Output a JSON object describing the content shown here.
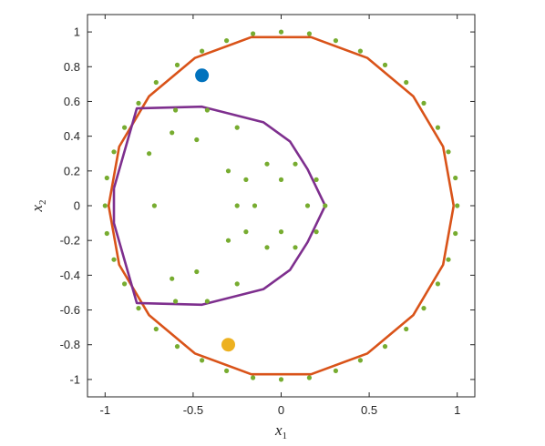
{
  "chart_data": {
    "type": "scatter",
    "title": "",
    "xlabel": "x",
    "xlabel_sub": "1",
    "ylabel": "x",
    "ylabel_sub": "2",
    "xlim": [
      -1.1,
      1.1
    ],
    "ylim": [
      -1.1,
      1.1
    ],
    "xticks": [
      -1,
      -0.5,
      0,
      0.5,
      1
    ],
    "xtick_labels": [
      "-1",
      "-0.5",
      "0",
      "0.5",
      "1"
    ],
    "yticks": [
      1,
      0.8,
      0.6,
      0.4,
      0.2,
      0,
      -0.2,
      -0.4,
      -0.6,
      -0.8,
      -1
    ],
    "ytick_labels": [
      "1",
      "0.8",
      "0.6",
      "0.4",
      "0.2",
      "0",
      "-0.2",
      "-0.4",
      "-0.6",
      "-0.8",
      "-1"
    ],
    "grid": false,
    "colors": {
      "dots": "#77AC30",
      "circle": "#D95319",
      "hull": "#7E2F8E",
      "point_blue": "#0072BD",
      "point_yellow": "#EDB120",
      "axes": "#262626"
    },
    "series": [
      {
        "type": "line",
        "color": "#D95319",
        "x": [
          0.98,
          0.92,
          0.75,
          0.49,
          0.17,
          -0.17,
          -0.49,
          -0.75,
          -0.92,
          -0.98,
          -0.92,
          -0.75,
          -0.49,
          -0.17,
          0.17,
          0.49,
          0.75,
          0.92,
          0.98
        ],
        "y": [
          0,
          0.34,
          0.63,
          0.85,
          0.97,
          0.97,
          0.85,
          0.63,
          0.34,
          0,
          -0.34,
          -0.63,
          -0.85,
          -0.97,
          -0.97,
          -0.85,
          -0.63,
          -0.34,
          0
        ]
      },
      {
        "type": "line",
        "color": "#7E2F8E",
        "x": [
          -0.95,
          -0.82,
          -0.45,
          -0.1,
          0.05,
          0.15,
          0.25,
          0.15,
          0.05,
          -0.1,
          -0.45,
          -0.82,
          -0.95,
          -0.95
        ],
        "y": [
          0.1,
          0.56,
          0.57,
          0.48,
          0.37,
          0.21,
          0,
          -0.21,
          -0.37,
          -0.48,
          -0.57,
          -0.56,
          -0.1,
          0.1
        ]
      },
      {
        "type": "scatter",
        "color": "#77AC30",
        "x": [
          1.0,
          0.99,
          0.95,
          0.89,
          0.81,
          0.71,
          0.59,
          0.45,
          0.31,
          0.16,
          0.0,
          -0.16,
          -0.31,
          -0.45,
          -0.59,
          -0.71,
          -0.81,
          -0.89,
          -0.95,
          -0.99,
          -1.0,
          -0.99,
          -0.95,
          -0.89,
          -0.81,
          -0.71,
          -0.59,
          -0.45,
          -0.31,
          -0.16,
          0.0,
          0.16,
          0.31,
          0.45,
          0.59,
          0.71,
          0.81,
          0.89,
          0.95,
          0.99,
          0.25,
          0.2,
          0.08,
          -0.08,
          -0.2,
          -0.25,
          -0.2,
          -0.08,
          0.08,
          0.2,
          0.15,
          0.0,
          -0.15,
          0.0,
          -0.25,
          -0.42,
          -0.6,
          -0.75,
          -0.6,
          -0.42,
          -0.25,
          -0.3,
          -0.48,
          -0.62,
          -0.72,
          -0.62,
          -0.48,
          -0.3
        ],
        "y": [
          0.0,
          0.16,
          0.31,
          0.45,
          0.59,
          0.71,
          0.81,
          0.89,
          0.95,
          0.99,
          1.0,
          0.99,
          0.95,
          0.89,
          0.81,
          0.71,
          0.59,
          0.45,
          0.31,
          0.16,
          0.0,
          -0.16,
          -0.31,
          -0.45,
          -0.59,
          -0.71,
          -0.81,
          -0.89,
          -0.95,
          -0.99,
          -1.0,
          -0.99,
          -0.95,
          -0.89,
          -0.81,
          -0.71,
          -0.59,
          -0.45,
          -0.31,
          -0.16,
          0.0,
          0.15,
          0.24,
          0.24,
          0.15,
          0.0,
          -0.15,
          -0.24,
          -0.24,
          -0.15,
          0.0,
          0.15,
          0.0,
          -0.15,
          0.45,
          0.55,
          0.55,
          0.3,
          -0.55,
          -0.55,
          -0.45,
          0.2,
          0.38,
          0.42,
          0.0,
          -0.42,
          -0.38,
          -0.2
        ]
      },
      {
        "type": "scatter",
        "color": "#0072BD",
        "x": [
          -0.45
        ],
        "y": [
          0.75
        ]
      },
      {
        "type": "scatter",
        "color": "#EDB120",
        "x": [
          -0.3
        ],
        "y": [
          -0.8
        ]
      }
    ]
  }
}
